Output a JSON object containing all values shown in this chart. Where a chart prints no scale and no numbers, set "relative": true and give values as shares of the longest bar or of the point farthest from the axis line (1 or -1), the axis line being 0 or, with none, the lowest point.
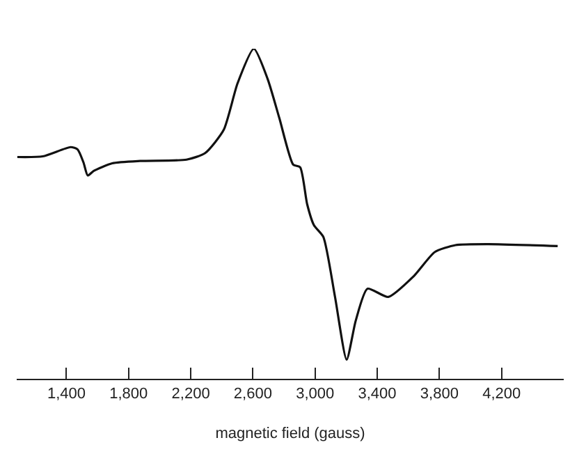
{
  "chart_data": {
    "type": "line",
    "relative": true,
    "xlabel": "magnetic field (gauss)",
    "xlim": [
      1080,
      4600
    ],
    "xticks": [
      {
        "value": 1400,
        "label": "1,400"
      },
      {
        "value": 1800,
        "label": "1,800"
      },
      {
        "value": 2200,
        "label": "2,200"
      },
      {
        "value": 2600,
        "label": "2,600"
      },
      {
        "value": 3000,
        "label": "3,000"
      },
      {
        "value": 3400,
        "label": "3,400"
      },
      {
        "value": 3800,
        "label": "3,800"
      },
      {
        "value": 4200,
        "label": "4,200"
      }
    ],
    "tick_labels": "x",
    "marker": "none",
    "line_style": "solid",
    "series": [
      {
        "color": "#111111",
        "x": [
          1084,
          1248,
          1427,
          1472,
          1510,
          1537,
          1576,
          1695,
          1874,
          2173,
          2293,
          2412,
          2501,
          2606,
          2695,
          2770,
          2859,
          2904,
          2949,
          2993,
          3053,
          3128,
          3203,
          3262,
          3337,
          3471,
          3635,
          3770,
          3904,
          4113,
          4561
        ],
        "values": [
          0.672,
          0.674,
          0.702,
          0.695,
          0.655,
          0.616,
          0.63,
          0.653,
          0.66,
          0.664,
          0.684,
          0.754,
          0.895,
          1.0,
          0.908,
          0.79,
          0.649,
          0.641,
          0.529,
          0.465,
          0.43,
          0.249,
          0.058,
          0.177,
          0.273,
          0.248,
          0.311,
          0.384,
          0.405,
          0.408,
          0.402
        ]
      }
    ]
  }
}
